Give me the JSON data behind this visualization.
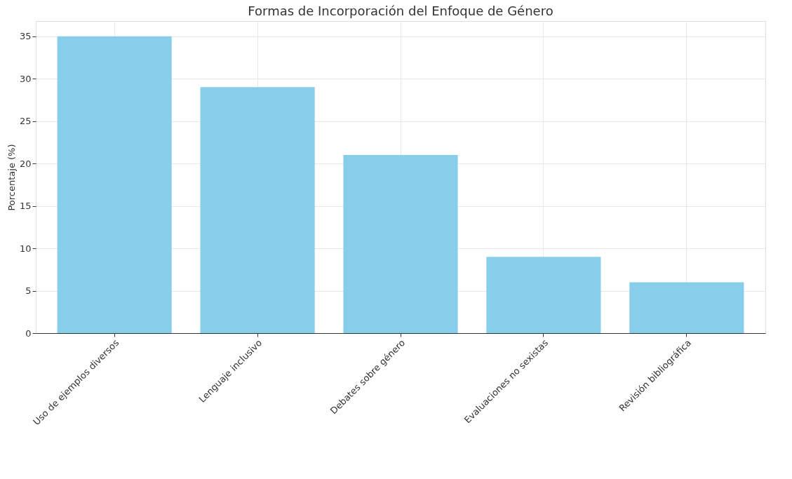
{
  "chart_data": {
    "type": "bar",
    "title": "Formas de Incorporación del Enfoque de Género",
    "ylabel": "Porcentaje (%)",
    "categories": [
      "Uso de ejemplos diversos",
      "Lenguaje inclusivo",
      "Debates sobre género",
      "Evaluaciones no sexistas",
      "Revisión bibliográfica"
    ],
    "values": [
      35,
      29,
      21,
      9,
      6
    ],
    "color": "#87ceeb",
    "ylim": [
      0,
      36.8
    ],
    "yticks": [
      0,
      5,
      10,
      15,
      20,
      25,
      30,
      35
    ],
    "grid": true
  }
}
